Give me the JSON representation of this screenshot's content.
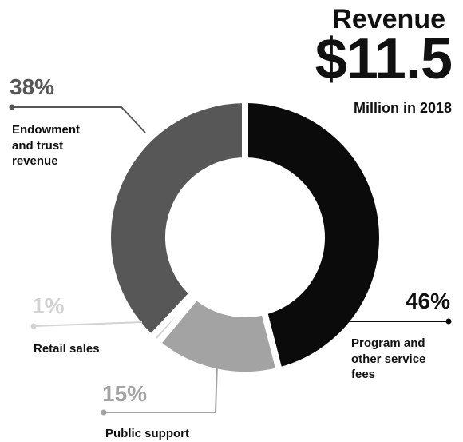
{
  "chart_data": {
    "type": "donut",
    "title": "Revenue",
    "subtitle": "$11.5",
    "caption": "Million in 2018",
    "categories": [
      "Program and other service fees",
      "Public support",
      "Retail sales",
      "Endowment and trust revenue"
    ],
    "values": [
      46,
      15,
      1,
      38
    ],
    "value_labels": [
      "46%",
      "15%",
      "1%",
      "38%"
    ],
    "colors": [
      "#0b0b0b",
      "#a3a3a3",
      "#d3d3d3",
      "#575757"
    ]
  }
}
